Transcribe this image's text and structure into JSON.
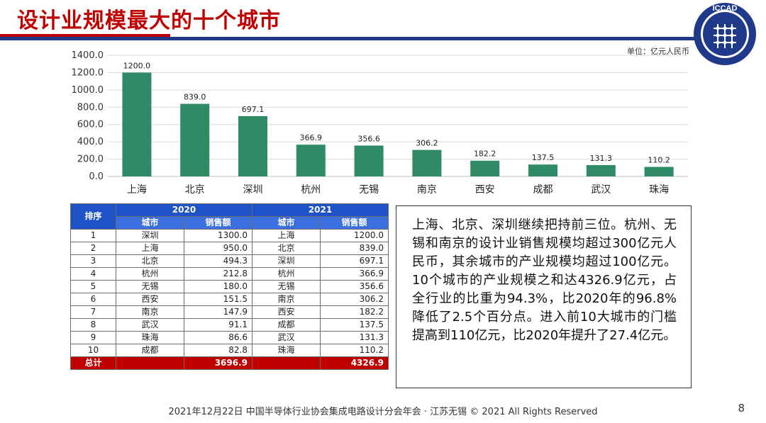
{
  "slide": {
    "title": "设计业规模最大的十个城市",
    "unit": "单位：亿元人民币",
    "footer": "2021年12月22日 中国半导体行业协会集成电路设计分会年会 · 江苏无锡 © 2021 All Rights Reserved",
    "page_number": "8",
    "logo_text": "ICCAD",
    "colors": {
      "title": "#c00000",
      "bar": "#2e8b66",
      "table_header": "#1e52c8",
      "total_row": "#c00000"
    }
  },
  "chart_data": {
    "type": "bar",
    "categories": [
      "上海",
      "北京",
      "深圳",
      "杭州",
      "无锡",
      "南京",
      "西安",
      "成都",
      "武汉",
      "珠海"
    ],
    "values": [
      1200.0,
      839.0,
      697.1,
      366.9,
      356.6,
      306.2,
      182.2,
      137.5,
      131.3,
      110.2
    ],
    "value_labels": [
      "1200.0",
      "839.0",
      "697.1",
      "366.9",
      "356.6",
      "306.2",
      "182.2",
      "137.5",
      "131.3",
      "110.2"
    ],
    "y_ticks": [
      "0.0",
      "200.0",
      "400.0",
      "600.0",
      "800.0",
      "1000.0",
      "1200.0",
      "1400.0"
    ],
    "ylim": [
      0,
      1400
    ],
    "grid": true,
    "title": "",
    "xlabel": "",
    "ylabel": "",
    "bar_color": "#2e8b66"
  },
  "table": {
    "rank_header": "排序",
    "year_2020": "2020",
    "year_2021": "2021",
    "city_header": "城市",
    "sales_header": "销售额",
    "rows": [
      {
        "rank": "1",
        "city2020": "深圳",
        "sales2020": "1300.0",
        "city2021": "上海",
        "sales2021": "1200.0"
      },
      {
        "rank": "2",
        "city2020": "上海",
        "sales2020": "950.0",
        "city2021": "北京",
        "sales2021": "839.0"
      },
      {
        "rank": "3",
        "city2020": "北京",
        "sales2020": "494.3",
        "city2021": "深圳",
        "sales2021": "697.1"
      },
      {
        "rank": "4",
        "city2020": "杭州",
        "sales2020": "212.8",
        "city2021": "杭州",
        "sales2021": "366.9"
      },
      {
        "rank": "5",
        "city2020": "无锡",
        "sales2020": "180.0",
        "city2021": "无锡",
        "sales2021": "356.6"
      },
      {
        "rank": "6",
        "city2020": "西安",
        "sales2020": "151.5",
        "city2021": "南京",
        "sales2021": "306.2"
      },
      {
        "rank": "7",
        "city2020": "南京",
        "sales2020": "147.9",
        "city2021": "西安",
        "sales2021": "182.2"
      },
      {
        "rank": "8",
        "city2020": "武汉",
        "sales2020": "91.1",
        "city2021": "成都",
        "sales2021": "137.5"
      },
      {
        "rank": "9",
        "city2020": "珠海",
        "sales2020": "86.6",
        "city2021": "武汉",
        "sales2021": "131.3"
      },
      {
        "rank": "10",
        "city2020": "成都",
        "sales2020": "82.8",
        "city2021": "珠海",
        "sales2021": "110.2"
      }
    ],
    "total_label": "总计",
    "total2020": "3696.9",
    "total2021": "4326.9"
  },
  "summary": "上海、北京、深圳继续把持前三位。杭州、无锡和南京的设计业销售规模均超过300亿元人民币，其余城市的产业规模均超过100亿元。10个城市的产业规模之和达4326.9亿元，占全行业的比重为94.3%，比2020年的96.8%降低了2.5个百分点。进入前10大城市的门槛提高到110亿元，比2020年提升了27.4亿元。"
}
